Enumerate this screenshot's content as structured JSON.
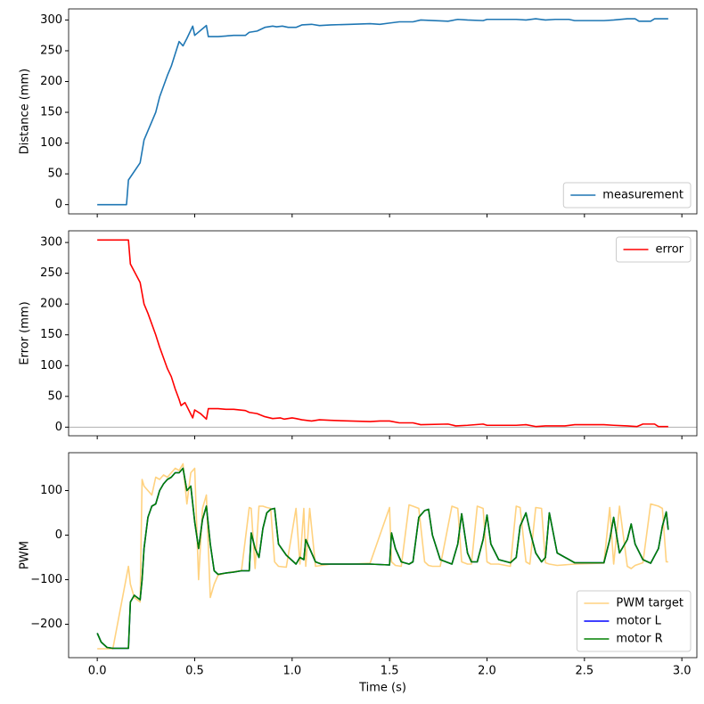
{
  "chart_data": [
    {
      "type": "line",
      "ylabel": "Distance (mm)",
      "legend": "lower right",
      "xlim": [
        -0.147,
        3.077
      ],
      "ylim": [
        -15,
        318
      ],
      "yticks": [
        0,
        50,
        100,
        150,
        200,
        250,
        300
      ],
      "x": [
        0,
        0.15,
        0.16,
        0.22,
        0.24,
        0.28,
        0.3,
        0.32,
        0.36,
        0.38,
        0.4,
        0.42,
        0.44,
        0.46,
        0.49,
        0.5,
        0.53,
        0.56,
        0.57,
        0.62,
        0.66,
        0.7,
        0.76,
        0.78,
        0.82,
        0.86,
        0.9,
        0.92,
        0.95,
        0.98,
        1.02,
        1.05,
        1.1,
        1.14,
        1.2,
        1.3,
        1.4,
        1.45,
        1.5,
        1.55,
        1.62,
        1.66,
        1.8,
        1.85,
        1.9,
        1.98,
        2.0,
        2.15,
        2.2,
        2.25,
        2.3,
        2.35,
        2.42,
        2.45,
        2.6,
        2.65,
        2.72,
        2.76,
        2.78,
        2.84,
        2.86,
        2.93
      ],
      "series": [
        {
          "name": "measurement",
          "color": "#1f77b4",
          "values": [
            0,
            0,
            40,
            68,
            105,
            135,
            150,
            175,
            210,
            225,
            245,
            265,
            258,
            270,
            290,
            275,
            283,
            291,
            273,
            273,
            274,
            275,
            275,
            280,
            282,
            288,
            290,
            289,
            290,
            288,
            288,
            292,
            293,
            291,
            292,
            293,
            294,
            293,
            295,
            297,
            297,
            300,
            298,
            301,
            300,
            299,
            301,
            301,
            300,
            302,
            300,
            301,
            301,
            299,
            299,
            300,
            302,
            302,
            298,
            298,
            302,
            302
          ]
        }
      ]
    },
    {
      "type": "line",
      "ylabel": "Error (mm)",
      "legend": "upper right",
      "hline": 0,
      "xlim": [
        -0.147,
        3.077
      ],
      "ylim": [
        -14,
        319
      ],
      "yticks": [
        0,
        50,
        100,
        150,
        200,
        250,
        300
      ],
      "x": [
        0,
        0.16,
        0.17,
        0.22,
        0.24,
        0.26,
        0.3,
        0.32,
        0.36,
        0.38,
        0.4,
        0.42,
        0.43,
        0.45,
        0.49,
        0.5,
        0.53,
        0.56,
        0.57,
        0.62,
        0.66,
        0.7,
        0.76,
        0.78,
        0.82,
        0.86,
        0.9,
        0.94,
        0.96,
        1.0,
        1.02,
        1.05,
        1.1,
        1.14,
        1.2,
        1.3,
        1.4,
        1.45,
        1.5,
        1.55,
        1.62,
        1.66,
        1.8,
        1.84,
        1.9,
        1.98,
        2.0,
        2.15,
        2.2,
        2.25,
        2.3,
        2.4,
        2.45,
        2.6,
        2.65,
        2.72,
        2.77,
        2.8,
        2.86,
        2.88,
        2.93
      ],
      "series": [
        {
          "name": "error",
          "color": "#ff0000",
          "values": [
            304,
            304,
            265,
            235,
            200,
            185,
            150,
            130,
            95,
            82,
            62,
            45,
            35,
            40,
            15,
            28,
            22,
            13,
            30,
            30,
            29,
            29,
            27,
            24,
            22,
            17,
            14,
            15,
            13,
            15,
            14,
            12,
            10,
            12,
            11,
            10,
            9,
            10,
            10,
            7,
            7,
            4,
            5,
            2,
            3,
            5,
            3,
            3,
            4,
            1,
            2,
            2,
            4,
            4,
            3,
            2,
            1,
            5,
            5,
            1,
            1
          ]
        }
      ]
    },
    {
      "type": "line",
      "ylabel": "PWM",
      "xlabel": "Time (s)",
      "legend": "lower right",
      "xlim": [
        -0.147,
        3.077
      ],
      "ylim": [
        -275,
        185
      ],
      "xticks": [
        {
          "value": 0,
          "label": "0.0"
        },
        0.5,
        {
          "value": 1,
          "label": "1.0"
        },
        1.5,
        {
          "value": 2,
          "label": "2.0"
        },
        2.5,
        {
          "value": 3,
          "label": "3.0"
        }
      ],
      "yticks": [
        {
          "value": -200,
          "label": "−200"
        },
        {
          "value": -100,
          "label": "−100"
        },
        0,
        100
      ],
      "x": [
        0,
        0.02,
        0.05,
        0.08,
        0.16,
        0.17,
        0.19,
        0.22,
        0.23,
        0.24,
        0.26,
        0.28,
        0.3,
        0.32,
        0.34,
        0.36,
        0.38,
        0.4,
        0.42,
        0.44,
        0.46,
        0.48,
        0.5,
        0.52,
        0.54,
        0.56,
        0.58,
        0.6,
        0.62,
        0.66,
        0.7,
        0.74,
        0.78,
        0.79,
        0.81,
        0.83,
        0.85,
        0.87,
        0.89,
        0.91,
        0.93,
        0.97,
        1.02,
        1.04,
        1.06,
        1.07,
        1.09,
        1.12,
        1.15,
        1.2,
        1.3,
        1.4,
        1.5,
        1.51,
        1.53,
        1.56,
        1.6,
        1.62,
        1.65,
        1.68,
        1.7,
        1.72,
        1.76,
        1.82,
        1.85,
        1.87,
        1.9,
        1.92,
        1.95,
        1.98,
        2.0,
        2.02,
        2.06,
        2.12,
        2.15,
        2.17,
        2.2,
        2.22,
        2.25,
        2.28,
        2.3,
        2.32,
        2.36,
        2.45,
        2.6,
        2.63,
        2.65,
        2.68,
        2.72,
        2.74,
        2.76,
        2.8,
        2.84,
        2.88,
        2.9,
        2.92,
        2.93
      ],
      "series": [
        {
          "name": "PWM target",
          "color": "#ffd280",
          "values": [
            -255,
            -255,
            -255,
            -255,
            -70,
            -110,
            -140,
            -150,
            125,
            110,
            100,
            90,
            130,
            125,
            135,
            130,
            140,
            150,
            145,
            160,
            70,
            140,
            150,
            -100,
            60,
            90,
            -140,
            -110,
            -90,
            -85,
            -82,
            -80,
            62,
            60,
            -75,
            65,
            65,
            62,
            60,
            -60,
            -70,
            -72,
            60,
            -65,
            60,
            -70,
            60,
            -70,
            -68,
            -65,
            -65,
            -63,
            62,
            -60,
            -68,
            -70,
            68,
            65,
            60,
            -60,
            -68,
            -70,
            -70,
            65,
            60,
            -60,
            -65,
            -65,
            65,
            60,
            -60,
            -65,
            -65,
            -70,
            65,
            62,
            -60,
            -65,
            62,
            60,
            -62,
            -65,
            -68,
            -65,
            -63,
            62,
            -65,
            65,
            -70,
            -75,
            -68,
            -62,
            70,
            65,
            60,
            -60,
            -60
          ]
        },
        {
          "name": "motor L",
          "color": "#0000ff",
          "values": [
            -220,
            -240,
            -252,
            -254,
            -254,
            -150,
            -135,
            -145,
            -100,
            -30,
            40,
            65,
            70,
            100,
            115,
            125,
            130,
            140,
            140,
            150,
            100,
            110,
            30,
            -30,
            35,
            65,
            -20,
            -80,
            -88,
            -85,
            -83,
            -80,
            -80,
            5,
            -30,
            -50,
            15,
            50,
            58,
            60,
            -20,
            -45,
            -65,
            -50,
            -55,
            -10,
            -30,
            -60,
            -65,
            -65,
            -65,
            -65,
            -67,
            5,
            -30,
            -60,
            -65,
            -60,
            40,
            55,
            58,
            0,
            -55,
            -65,
            -20,
            48,
            -40,
            -60,
            -60,
            -10,
            45,
            -20,
            -55,
            -62,
            -50,
            20,
            50,
            10,
            -40,
            -60,
            -50,
            50,
            -40,
            -62,
            -62,
            -10,
            40,
            -40,
            -10,
            25,
            -20,
            -55,
            -63,
            -30,
            20,
            52,
            12
          ]
        },
        {
          "name": "motor R",
          "color": "#008000",
          "values": [
            -220,
            -240,
            -252,
            -254,
            -254,
            -150,
            -135,
            -145,
            -100,
            -30,
            40,
            65,
            70,
            100,
            115,
            125,
            130,
            140,
            140,
            150,
            100,
            110,
            30,
            -30,
            35,
            65,
            -20,
            -80,
            -88,
            -85,
            -83,
            -80,
            -80,
            5,
            -30,
            -50,
            15,
            50,
            58,
            60,
            -20,
            -45,
            -65,
            -50,
            -55,
            -10,
            -30,
            -60,
            -65,
            -65,
            -65,
            -65,
            -67,
            5,
            -30,
            -60,
            -65,
            -60,
            40,
            55,
            58,
            0,
            -55,
            -65,
            -20,
            48,
            -40,
            -60,
            -60,
            -10,
            45,
            -20,
            -55,
            -62,
            -50,
            20,
            50,
            10,
            -40,
            -60,
            -50,
            50,
            -40,
            -62,
            -62,
            -10,
            40,
            -40,
            -10,
            25,
            -20,
            -55,
            -63,
            -30,
            20,
            52,
            12
          ]
        }
      ]
    }
  ]
}
